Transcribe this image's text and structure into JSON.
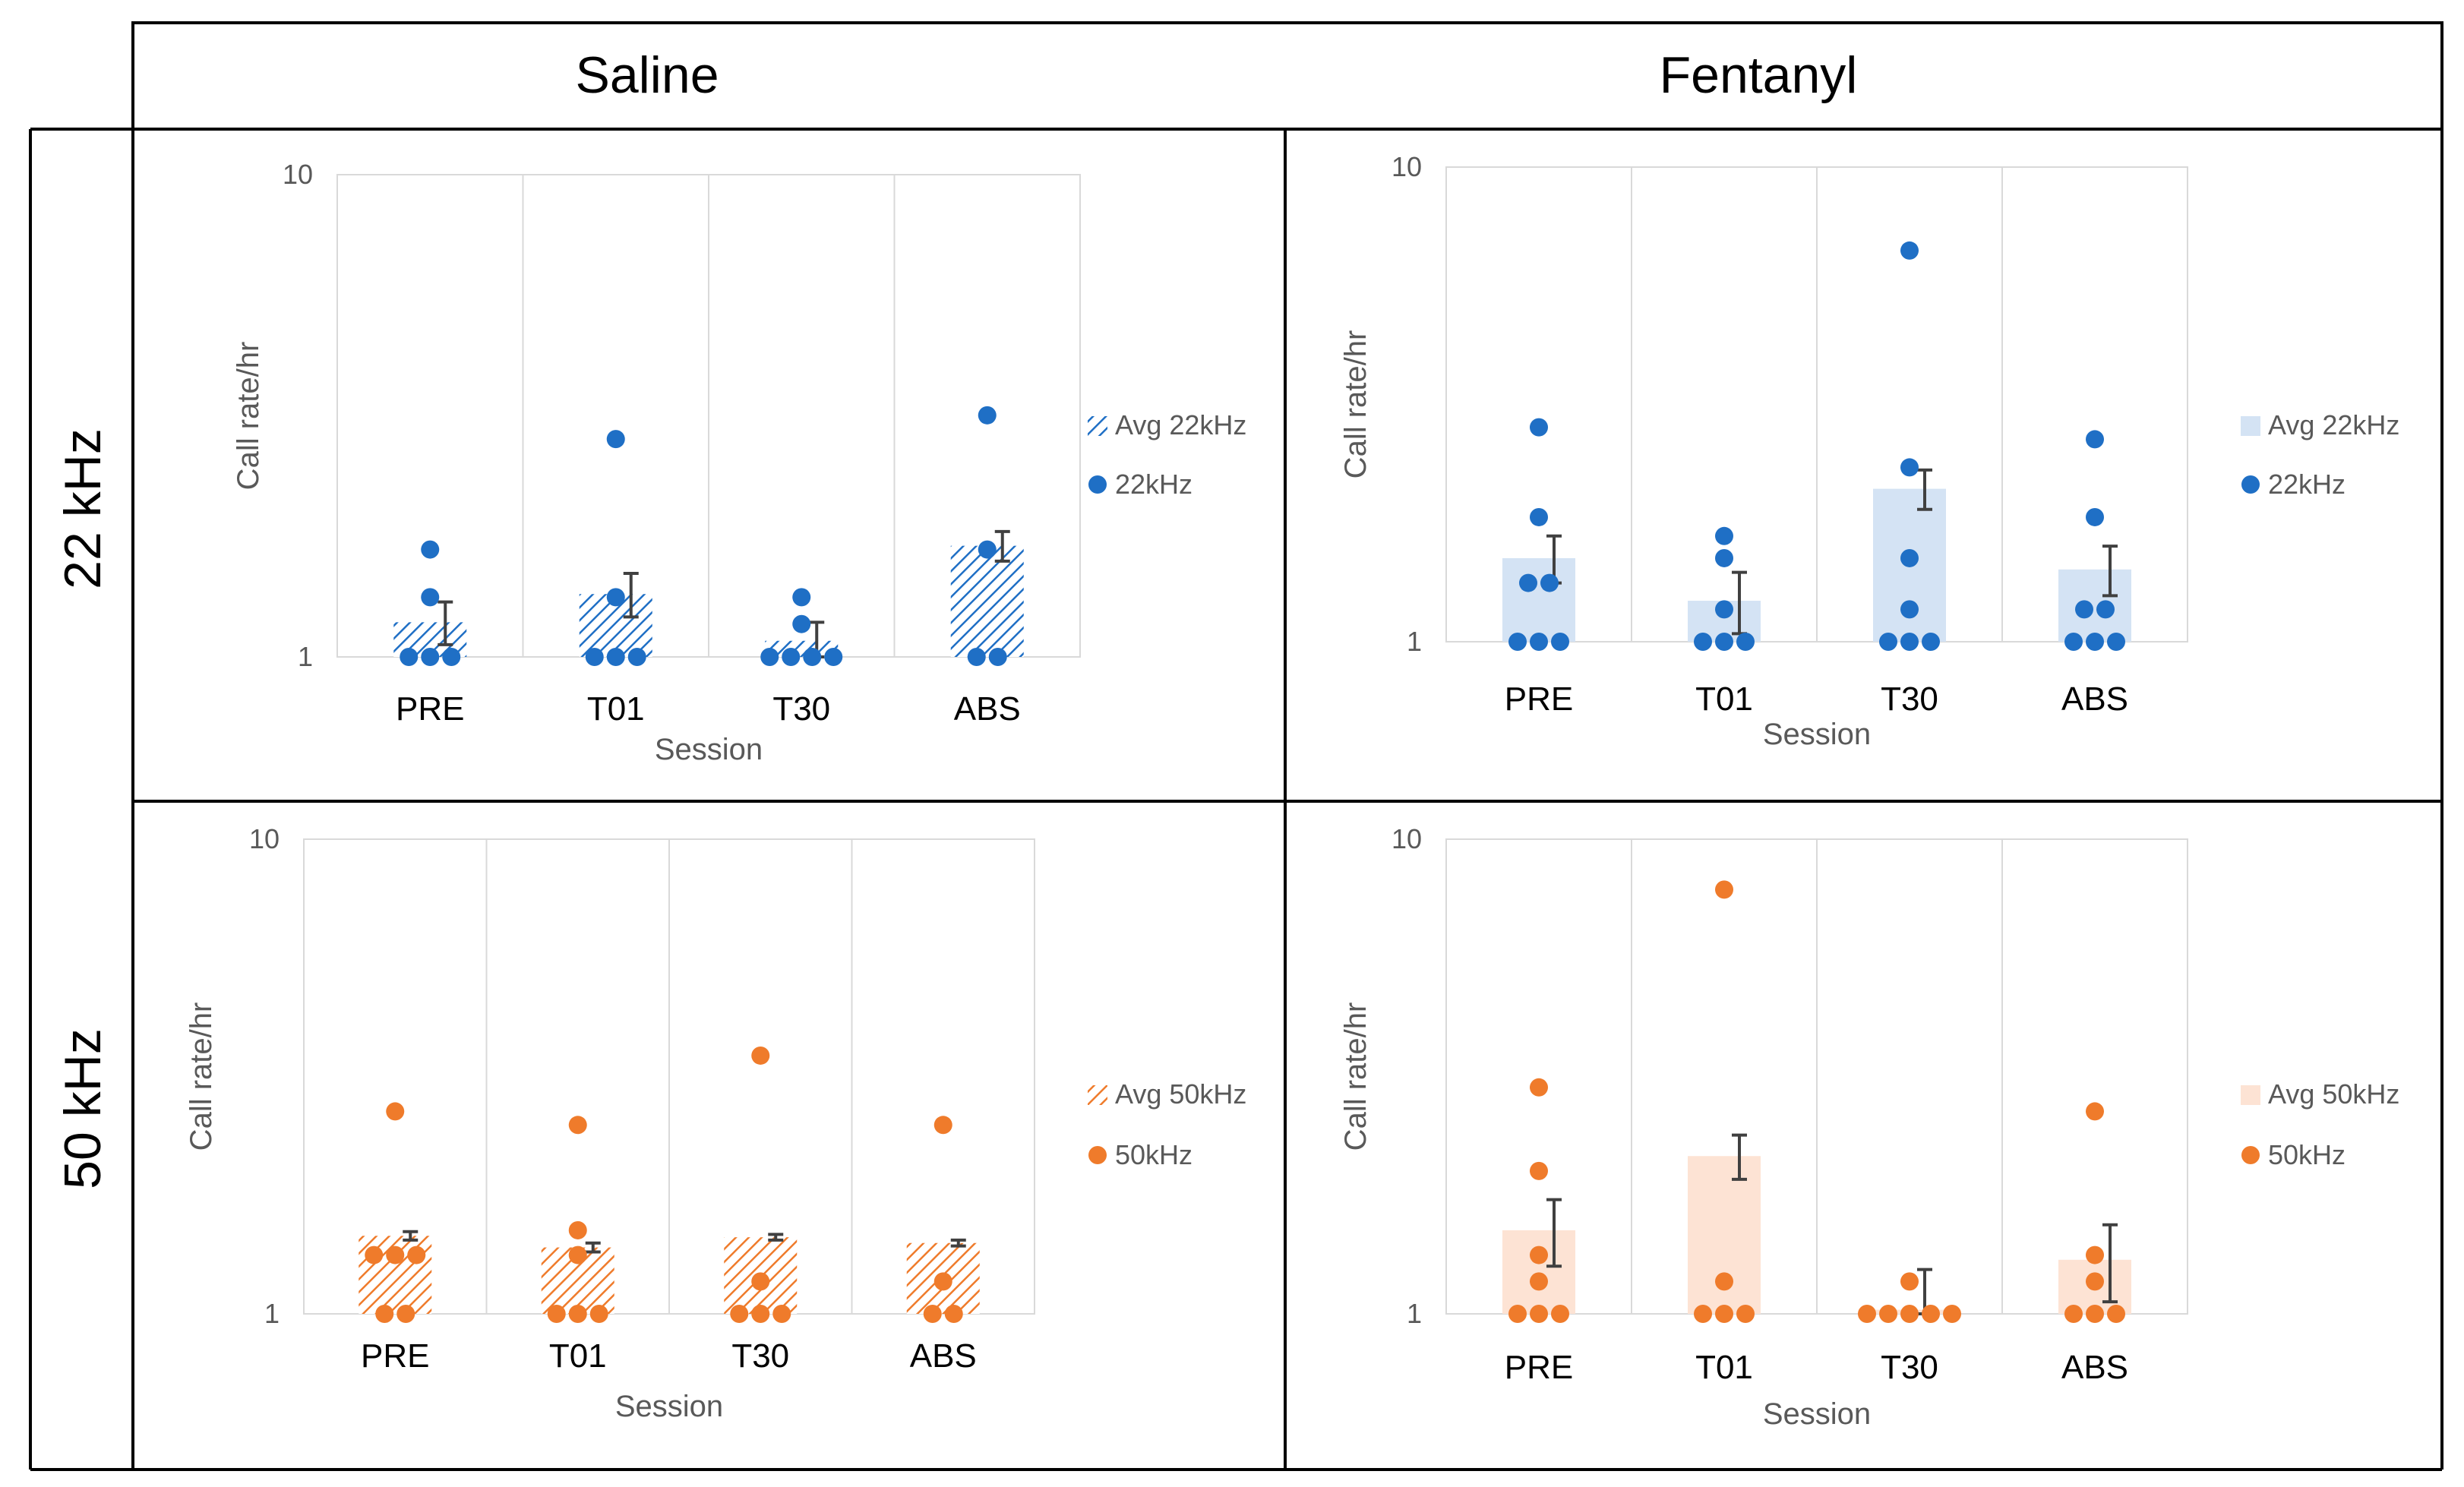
{
  "headers": {
    "columns": [
      "Saline",
      "Fentanyl"
    ],
    "rows": [
      "22 kHz",
      "50 kHz"
    ]
  },
  "colors": {
    "blue": "#1f6fc5",
    "blue_bar": "#d4e3f4",
    "orange": "#ef7b2b",
    "orange_bar": "#fde3d4",
    "grid": "#d9d9d9",
    "error": "#404040"
  },
  "chart_data": [
    {
      "id": "saline-22",
      "type": "bar",
      "scale": "log",
      "xlabel": "Session",
      "ylabel": "Call rate/hr",
      "ylim": [
        1,
        10
      ],
      "yticks": [
        "1",
        "10"
      ],
      "categories": [
        "PRE",
        "T01",
        "T30",
        "ABS"
      ],
      "bar_style": "hatched",
      "color_key": "blue",
      "series": [
        {
          "name": "Avg 22kHz",
          "kind": "bar",
          "values": [
            1.18,
            1.35,
            1.08,
            1.7
          ],
          "errors": [
            0.12,
            0.14,
            0.1,
            0.12
          ]
        },
        {
          "name": "22kHz",
          "kind": "scatter",
          "points": [
            [
              1,
              1,
              1,
              1.33,
              1.67
            ],
            [
              1,
              1,
              1,
              1.33,
              2.83
            ],
            [
              1,
              1,
              1,
              1,
              1.33,
              1.17
            ],
            [
              1,
              1,
              1.67,
              3.17
            ]
          ]
        }
      ]
    },
    {
      "id": "fentanyl-22",
      "type": "bar",
      "scale": "log",
      "xlabel": "Session",
      "ylabel": "Call rate/hr",
      "ylim": [
        1,
        10
      ],
      "yticks": [
        "1",
        "10"
      ],
      "categories": [
        "PRE",
        "T01",
        "T30",
        "ABS"
      ],
      "bar_style": "solid",
      "color_key": "blue",
      "series": [
        {
          "name": "Avg 22kHz",
          "kind": "bar",
          "values": [
            1.5,
            1.22,
            2.1,
            1.42
          ],
          "errors": [
            0.17,
            0.18,
            0.2,
            0.17
          ]
        },
        {
          "name": "22kHz",
          "kind": "scatter",
          "points": [
            [
              1,
              1,
              1,
              1.33,
              1.33,
              1.83,
              2.83
            ],
            [
              1,
              1,
              1,
              1.17,
              1.5,
              1.67
            ],
            [
              1,
              1,
              1,
              1.17,
              1.5,
              2.33,
              6.67
            ],
            [
              1,
              1,
              1,
              1.17,
              1.17,
              1.83,
              2.67
            ]
          ]
        }
      ]
    },
    {
      "id": "saline-50",
      "type": "bar",
      "scale": "log",
      "xlabel": "Session",
      "ylabel": "Call rate/hr",
      "ylim": [
        1,
        10
      ],
      "yticks": [
        "1",
        "10"
      ],
      "categories": [
        "PRE",
        "T01",
        "T30",
        "ABS"
      ],
      "bar_style": "hatched",
      "color_key": "orange",
      "series": [
        {
          "name": "Avg 50kHz",
          "kind": "bar",
          "values": [
            1.46,
            1.38,
            1.45,
            1.41
          ],
          "errors": [
            0.03,
            0.03,
            0.02,
            0.02
          ]
        },
        {
          "name": "50kHz",
          "kind": "scatter",
          "points": [
            [
              1,
              1,
              1.33,
              1.33,
              1.33,
              2.67
            ],
            [
              1,
              1,
              1,
              1.33,
              1.5,
              2.5
            ],
            [
              1,
              1,
              1,
              1.17,
              3.5
            ],
            [
              1,
              1,
              1.17,
              2.5
            ]
          ]
        }
      ]
    },
    {
      "id": "fentanyl-50",
      "type": "bar",
      "scale": "log",
      "xlabel": "Session",
      "ylabel": "Call rate/hr",
      "ylim": [
        1,
        10
      ],
      "yticks": [
        "1",
        "10"
      ],
      "categories": [
        "PRE",
        "T01",
        "T30",
        "ABS"
      ],
      "bar_style": "solid",
      "color_key": "orange",
      "series": [
        {
          "name": "Avg 50kHz",
          "kind": "bar",
          "values": [
            1.5,
            2.15,
            1.02,
            1.3
          ],
          "errors": [
            0.24,
            0.23,
            0.22,
            0.24
          ]
        },
        {
          "name": "50kHz",
          "kind": "scatter",
          "points": [
            [
              1,
              1,
              1,
              1.17,
              1.33,
              2,
              3
            ],
            [
              1,
              1,
              1,
              1.17,
              7.83
            ],
            [
              1,
              1,
              1,
              1,
              1,
              1.17
            ],
            [
              1,
              1,
              1,
              1.17,
              1.33,
              2.67
            ]
          ]
        }
      ]
    }
  ]
}
